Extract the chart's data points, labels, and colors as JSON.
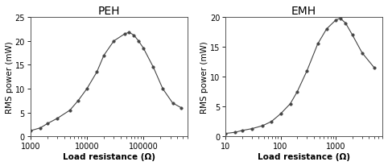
{
  "peh": {
    "title": "PEH",
    "x": [
      1000,
      1500,
      2000,
      3000,
      5000,
      7000,
      10000,
      15000,
      20000,
      30000,
      47000,
      56000,
      68000,
      82000,
      100000,
      150000,
      220000,
      330000,
      470000
    ],
    "y": [
      1.2,
      1.8,
      2.7,
      3.8,
      5.5,
      7.5,
      10.0,
      13.5,
      17.0,
      20.0,
      21.5,
      21.8,
      21.2,
      20.0,
      18.5,
      14.5,
      10.0,
      7.0,
      6.0
    ],
    "xlabel": "Load resistance (Ω)",
    "ylabel": "RMS power (mW)",
    "xlim": [
      1000,
      600000
    ],
    "ylim": [
      0,
      25
    ],
    "yticks": [
      0,
      5,
      10,
      15,
      20,
      25
    ],
    "xtick_labels": [
      "1000",
      "10000",
      "100000"
    ],
    "xtick_vals": [
      1000,
      10000,
      100000
    ]
  },
  "emh": {
    "title": "EMH",
    "x": [
      10,
      15,
      20,
      30,
      47,
      68,
      100,
      150,
      200,
      300,
      470,
      680,
      1000,
      1200,
      1500,
      2000,
      3000,
      5000
    ],
    "y": [
      0.5,
      0.7,
      1.0,
      1.3,
      1.8,
      2.5,
      3.8,
      5.5,
      7.5,
      11.0,
      15.5,
      18.0,
      19.5,
      19.8,
      19.0,
      17.0,
      14.0,
      11.5
    ],
    "xlabel": "Load resistance (Ω)",
    "ylabel": "RMS power (mW)",
    "xlim": [
      10,
      7000
    ],
    "ylim": [
      0,
      20
    ],
    "yticks": [
      0,
      5,
      10,
      15,
      20
    ],
    "xtick_labels": [
      "10",
      "100",
      "1000"
    ],
    "xtick_vals": [
      10,
      100,
      1000
    ]
  },
  "marker": "o",
  "marker_size": 2.5,
  "line_color": "#444444",
  "bg_color": "#ffffff",
  "title_fontsize": 10,
  "label_fontsize": 7.5,
  "tick_fontsize": 7
}
